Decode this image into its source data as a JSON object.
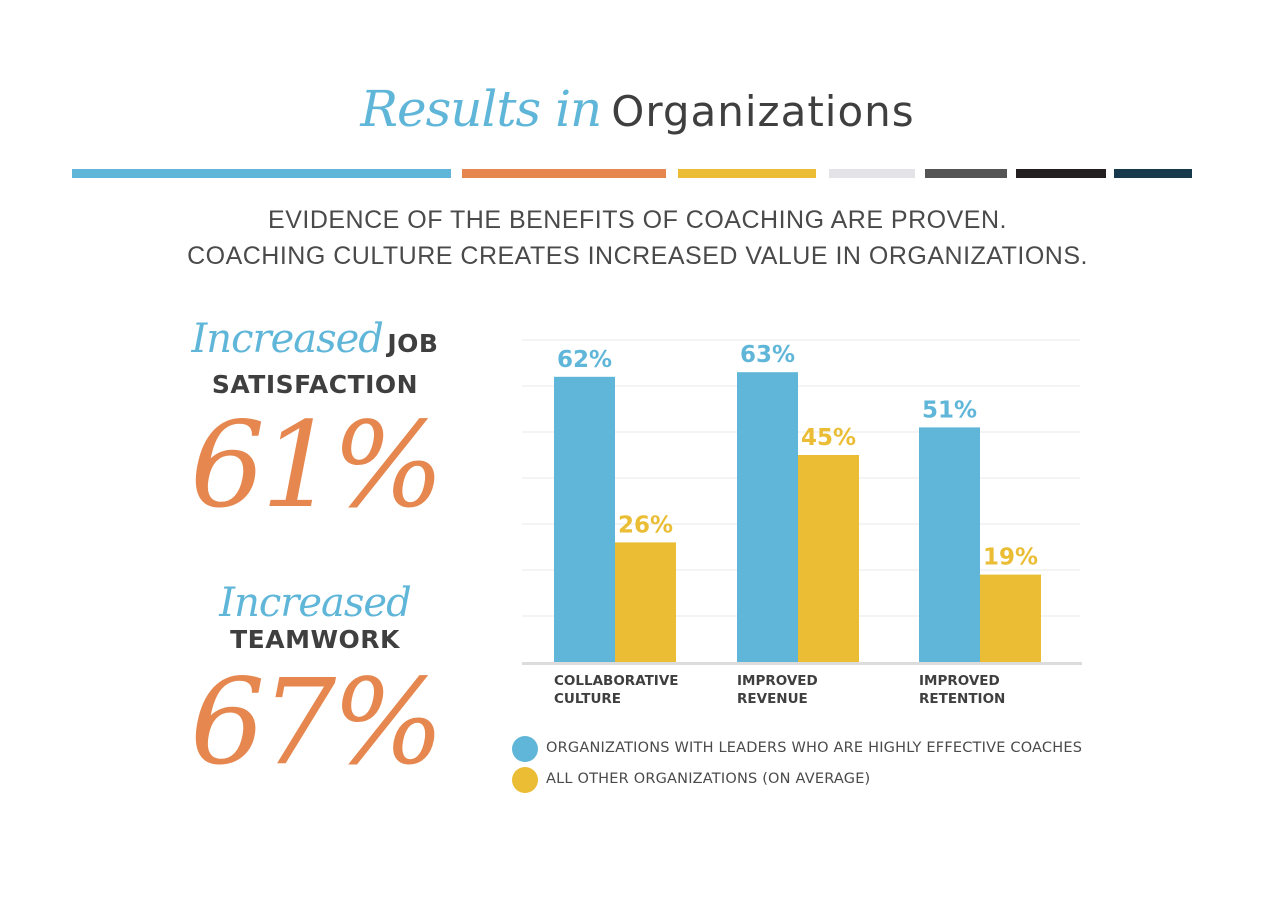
{
  "title": {
    "script": "Results in",
    "plain": "Organizations"
  },
  "stripes": [
    {
      "color": "#5fb6d8"
    },
    {
      "color": "#e5874f"
    },
    {
      "color": "#eabd34"
    },
    {
      "color": "#e4e4e8"
    },
    {
      "color": "#545454"
    },
    {
      "color": "#231f20"
    },
    {
      "color": "#163a4c"
    }
  ],
  "subtitle": {
    "line1": "EVIDENCE OF THE BENEFITS OF COACHING ARE PROVEN.",
    "line2": "COACHING CULTURE CREATES INCREASED VALUE IN ORGANIZATIONS."
  },
  "stats": [
    {
      "script": "Increased",
      "label_a": "JOB",
      "label_b": "SATISFACTION",
      "value": "61%"
    },
    {
      "script": "Increased",
      "label_b": "TEAMWORK",
      "value": "67%"
    }
  ],
  "colors": {
    "blue": "#5fb6d8",
    "yellow": "#eabd34",
    "orange": "#e5874f",
    "grid": "#e8e8e8",
    "axis": "#dcdcdc",
    "text": "#3f3f3f"
  },
  "chart_data": {
    "type": "bar",
    "categories": [
      [
        "COLLABORATIVE",
        "CULTURE"
      ],
      [
        "IMPROVED",
        "REVENUE"
      ],
      [
        "IMPROVED",
        "RETENTION"
      ]
    ],
    "series": [
      {
        "name": "ORGANIZATIONS WITH LEADERS WHO ARE HIGHLY EFFECTIVE COACHES",
        "color": "#5fb6d8",
        "values": [
          62,
          63,
          51
        ],
        "labels": [
          "62%",
          "63%",
          "51%"
        ]
      },
      {
        "name": "ALL OTHER ORGANIZATIONS (ON AVERAGE)",
        "color": "#eabd34",
        "values": [
          26,
          45,
          19
        ],
        "labels": [
          "26%",
          "45%",
          "19%"
        ]
      }
    ],
    "ylim": [
      0,
      70
    ],
    "grid": true,
    "legend": "bottom"
  }
}
